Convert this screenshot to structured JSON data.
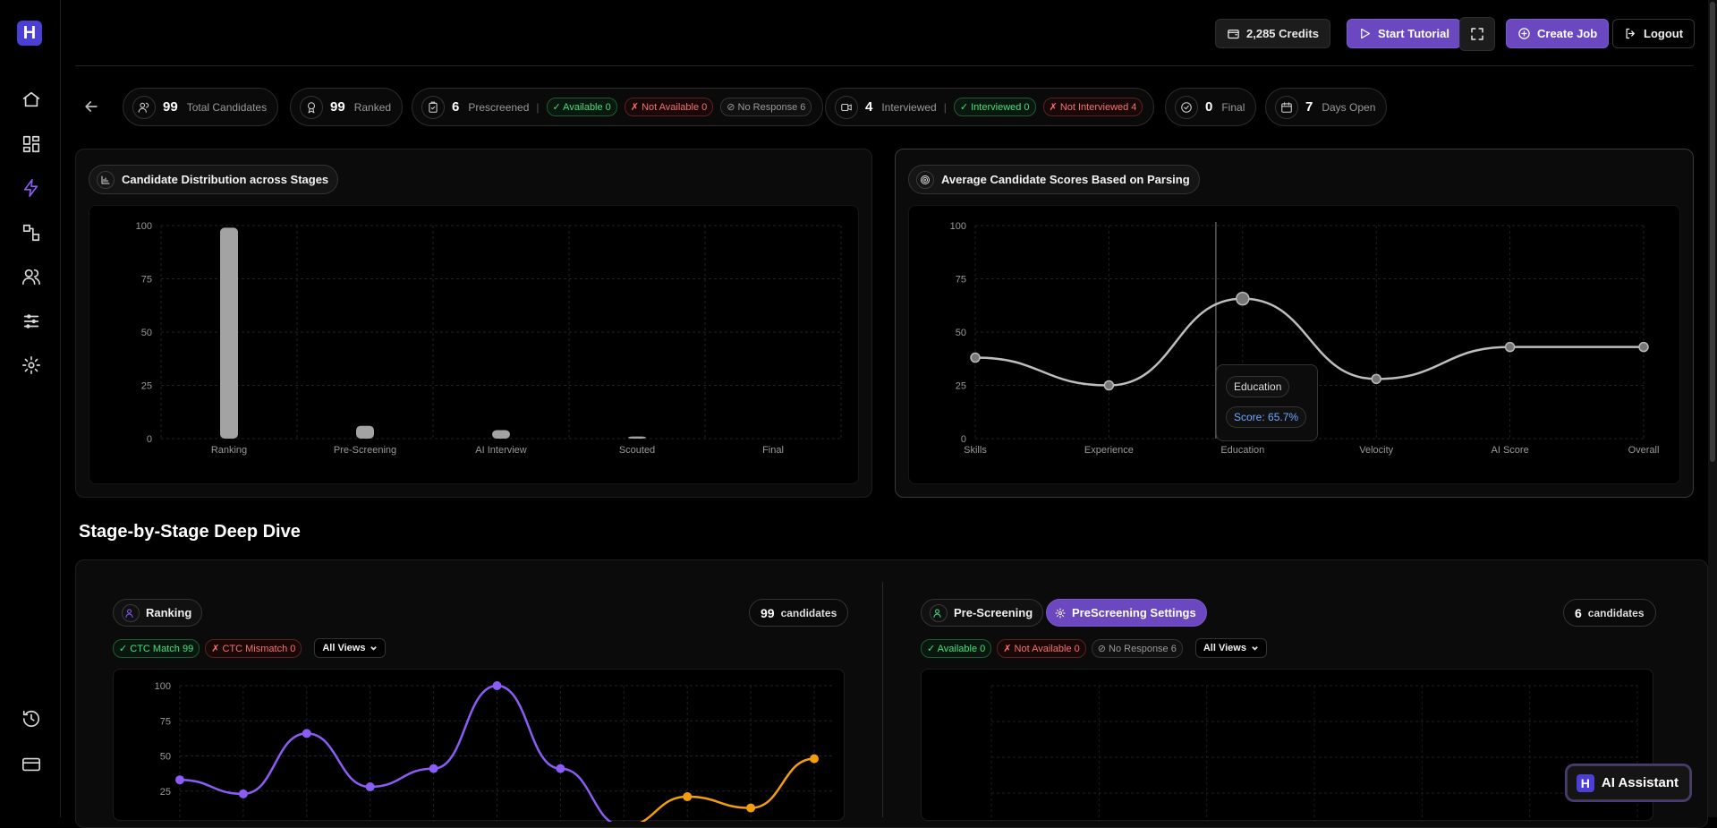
{
  "header": {
    "credits_label": "2,285 Credits",
    "start_tutorial_label": "Start Tutorial",
    "create_job_label": "Create Job",
    "logout_label": "Logout"
  },
  "stats": {
    "total_candidates": {
      "value": "99",
      "label": "Total Candidates"
    },
    "ranked": {
      "value": "99",
      "label": "Ranked"
    },
    "prescreened": {
      "value": "6",
      "label": "Prescreened",
      "available": "✓ Available 0",
      "not_available": "✗ Not Available 0",
      "no_response": "⊘ No Response 6"
    },
    "interviewed": {
      "value": "4",
      "label": "Interviewed",
      "interviewed_tag": "✓ Interviewed 0",
      "not_interviewed_tag": "✗ Not Interviewed 4"
    },
    "final": {
      "value": "0",
      "label": "Final"
    },
    "days_open": {
      "value": "7",
      "label": "Days Open"
    },
    "separator": "|"
  },
  "distribution_card": {
    "title": "Candidate Distribution across Stages"
  },
  "scores_card": {
    "title": "Average Candidate Scores Based on Parsing",
    "tooltip_label": "Education",
    "tooltip_value": "Score: 65.7%"
  },
  "section": {
    "title": "Stage-by-Stage Deep Dive"
  },
  "ranking_panel": {
    "title": "Ranking",
    "count": "99",
    "count_label": "candidates",
    "ctc_match": "✓ CTC Match 99",
    "ctc_mismatch": "✗ CTC Mismatch 0",
    "views_select": "All Views"
  },
  "prescreening_panel": {
    "title": "Pre-Screening",
    "settings_label": "PreScreening Settings",
    "count": "6",
    "count_label": "candidates",
    "available": "✓ Available 0",
    "not_available": "✗ Not Available 0",
    "no_response": "⊘ No Response 6",
    "views_select": "All Views"
  },
  "ai_assistant": {
    "label": "AI Assistant",
    "logo_letter": "H"
  },
  "logo_letter": "H",
  "colors": {
    "accent_purple": "#6b48c0",
    "line_purple": "#8b5cf6",
    "line_orange": "#f59e0b",
    "bar_gray": "#a3a3a3",
    "success": "#4ade80",
    "danger": "#f87171"
  },
  "chart_data": [
    {
      "type": "bar",
      "title": "Candidate Distribution across Stages",
      "categories": [
        "Ranking",
        "Pre-Screening",
        "AI Interview",
        "Scouted",
        "Final"
      ],
      "values": [
        99,
        6,
        4,
        1,
        0
      ],
      "ylim": [
        0,
        100
      ],
      "yticks": [
        0,
        25,
        50,
        75,
        100
      ],
      "grid": true
    },
    {
      "type": "line",
      "title": "Average Candidate Scores Based on Parsing",
      "categories": [
        "Skills",
        "Experience",
        "Education",
        "Velocity",
        "AI Score",
        "Overall"
      ],
      "values": [
        38,
        25,
        65.7,
        28,
        43,
        43
      ],
      "ylim": [
        0,
        100
      ],
      "yticks": [
        0,
        25,
        50,
        75,
        100
      ],
      "grid": true
    },
    {
      "type": "line",
      "yticks": [
        25,
        50,
        75,
        100
      ],
      "ylim": [
        0,
        100
      ],
      "grid": true,
      "series": [
        {
          "color": "#8b5cf6",
          "values": [
            33,
            23,
            66,
            28,
            41,
            100,
            41,
            0,
            null,
            null,
            null
          ]
        },
        {
          "color": "#f59e0b",
          "values": [
            null,
            null,
            null,
            null,
            null,
            null,
            null,
            0,
            21,
            13,
            48
          ]
        }
      ]
    }
  ]
}
